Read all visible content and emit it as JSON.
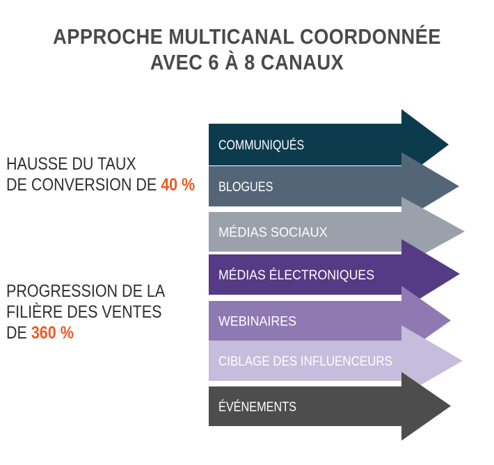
{
  "title": {
    "line1": "APPROCHE MULTICANAL COORDONNÉE",
    "line2": "AVEC 6 À 8 CANAUX"
  },
  "stats": [
    {
      "line1": "HAUSSE DU TAUX",
      "line2_prefix": "DE CONVERSION DE ",
      "highlight": "40 %"
    },
    {
      "line1": "PROGRESSION DE LA",
      "line2": "FILIÈRE DES VENTES",
      "line3_prefix": "DE ",
      "highlight": "360 %"
    }
  ],
  "highlight_color": "#ec5a24",
  "channels": [
    {
      "label": "COMMUNIQUÉS",
      "color": "#0c3b4e"
    },
    {
      "label": "BLOGUES",
      "color": "#546577"
    },
    {
      "label": "MÉDIAS SOCIAUX",
      "color": "#9aa1aa"
    },
    {
      "label": "MÉDIAS ÉLECTRONIQUES",
      "color": "#553a85"
    },
    {
      "label": "WEBINAIRES",
      "color": "#8f79b2"
    },
    {
      "label": "CIBLAGE DES INFLUENCEURS",
      "color": "#c6bcdb"
    },
    {
      "label": "ÉVÉNEMENTS",
      "color": "#4d4d4d"
    }
  ]
}
